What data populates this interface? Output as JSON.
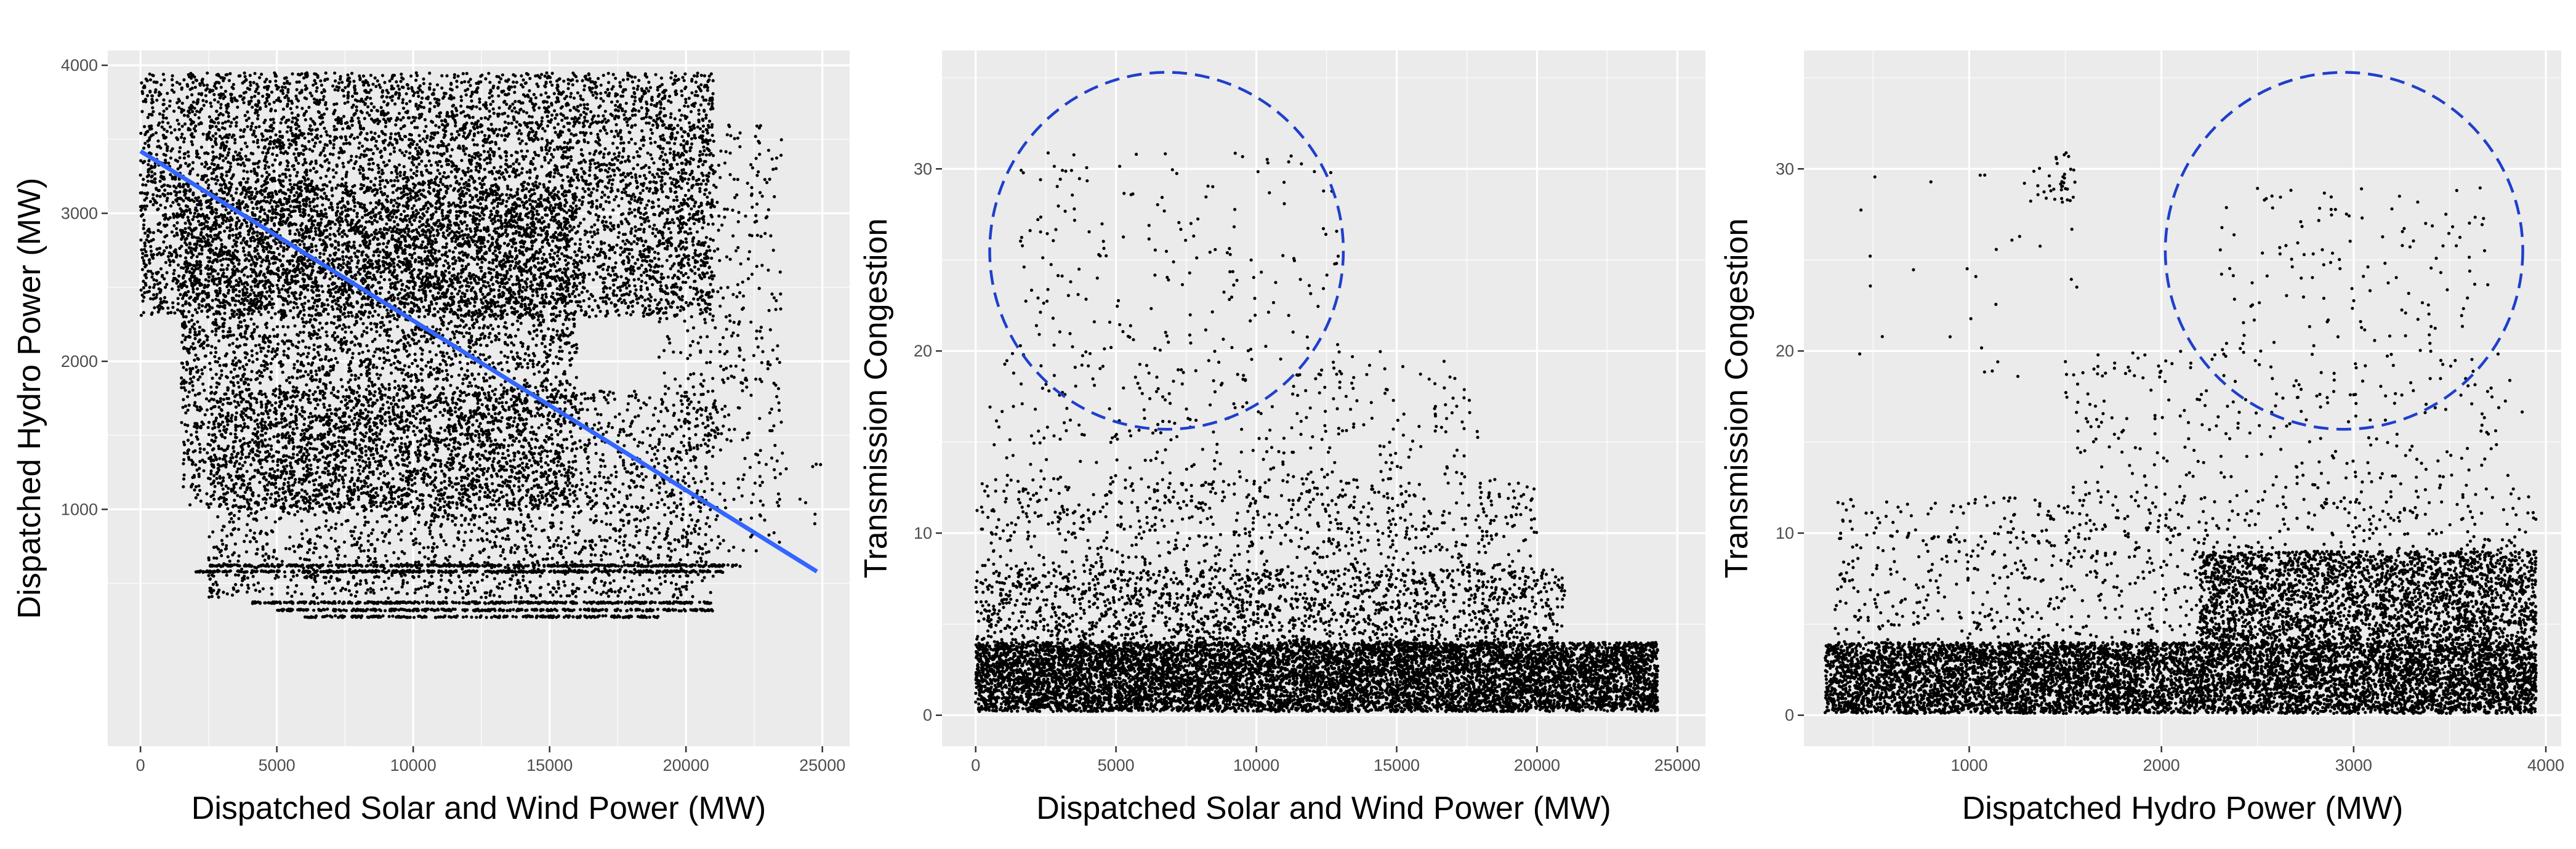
{
  "colors": {
    "panel_bg": "#EBEBEB",
    "grid_major": "#FFFFFF",
    "points": "#000000",
    "fit_line": "#3366FF",
    "circle": "#1F3FCC",
    "tick_text": "#4D4D4D"
  },
  "chart_data": [
    {
      "type": "scatter",
      "title": "",
      "xlabel": "Dispatched Solar and Wind Power (MW)",
      "ylabel": "Dispatched Hydro Power (MW)",
      "xlim": [
        -1200,
        26000
      ],
      "ylim": [
        -600,
        4100
      ],
      "xticks": [
        0,
        5000,
        10000,
        15000,
        20000,
        25000
      ],
      "xtick_labels": [
        "0",
        "5000",
        "10000",
        "15000",
        "20000",
        "25000"
      ],
      "yticks": [
        1000,
        2000,
        3000,
        4000
      ],
      "ytick_labels": [
        "1000",
        "2000",
        "3000",
        "4000"
      ],
      "grid": true,
      "fit_line": {
        "x": [
          0,
          24800
        ],
        "y": [
          3420,
          580
        ]
      },
      "scatter_regions": [
        {
          "x": [
            0,
            21000
          ],
          "y": [
            2300,
            3950
          ],
          "n": 6500
        },
        {
          "x": [
            1500,
            16000
          ],
          "y": [
            1000,
            3200
          ],
          "n": 5000
        },
        {
          "x": [
            2500,
            21000
          ],
          "y": [
            400,
            1800
          ],
          "n": 2500
        },
        {
          "x": [
            19000,
            23500
          ],
          "y": [
            700,
            3600
          ],
          "n": 500
        },
        {
          "x": [
            22500,
            25000
          ],
          "y": [
            900,
            1400
          ],
          "n": 12
        }
      ],
      "scatter_bands": [
        {
          "x": [
            2500,
            22000
          ],
          "y": 620,
          "n": 400
        },
        {
          "x": [
            2000,
            21500
          ],
          "y": 580,
          "n": 400
        },
        {
          "x": [
            4000,
            21000
          ],
          "y": 370,
          "n": 350
        },
        {
          "x": [
            5000,
            21000
          ],
          "y": 320,
          "n": 300
        },
        {
          "x": [
            6000,
            19000
          ],
          "y": 275,
          "n": 200
        }
      ]
    },
    {
      "type": "scatter",
      "title": "",
      "xlabel": "Dispatched Solar and Wind Power (MW)",
      "ylabel": "Transmission Congestion",
      "xlim": [
        -1200,
        26000
      ],
      "ylim": [
        -1.7,
        36.5
      ],
      "xticks": [
        0,
        5000,
        10000,
        15000,
        20000,
        25000
      ],
      "xtick_labels": [
        "0",
        "5000",
        "10000",
        "15000",
        "20000",
        "25000"
      ],
      "yticks": [
        0,
        10,
        20,
        30
      ],
      "ytick_labels": [
        "0",
        "10",
        "20",
        "30"
      ],
      "grid": true,
      "scatter_regions": [
        {
          "x": [
            0,
            24300
          ],
          "y": [
            0.2,
            4
          ],
          "n": 9000
        },
        {
          "x": [
            0,
            21000
          ],
          "y": [
            4,
            8
          ],
          "n": 1600
        },
        {
          "x": [
            0,
            20000
          ],
          "y": [
            8,
            13
          ],
          "n": 700
        },
        {
          "x": [
            500,
            18000
          ],
          "y": [
            13,
            20
          ],
          "n": 300
        },
        {
          "x": [
            1500,
            13000
          ],
          "y": [
            20,
            31
          ],
          "n": 180
        }
      ],
      "highlight_circle": {
        "cx": 6800,
        "cy": 25.5,
        "rx_data": 6300,
        "ry_data": 9.8
      }
    },
    {
      "type": "scatter",
      "title": "",
      "xlabel": "Dispatched Hydro Power (MW)",
      "ylabel": "Transmission Congestion",
      "xlim": [
        140,
        4080
      ],
      "ylim": [
        -1.7,
        36.5
      ],
      "xticks": [
        1000,
        2000,
        3000,
        4000
      ],
      "xtick_labels": [
        "1000",
        "2000",
        "3000",
        "4000"
      ],
      "yticks": [
        0,
        10,
        20,
        30
      ],
      "ytick_labels": [
        "0",
        "10",
        "20",
        "30"
      ],
      "grid": true,
      "scatter_regions": [
        {
          "x": [
            250,
            3950
          ],
          "y": [
            0.1,
            4
          ],
          "n": 8000
        },
        {
          "x": [
            2200,
            3950
          ],
          "y": [
            4,
            9
          ],
          "n": 2500
        },
        {
          "x": [
            300,
            3950
          ],
          "y": [
            4,
            12
          ],
          "n": 1000
        },
        {
          "x": [
            1500,
            3900
          ],
          "y": [
            12,
            20
          ],
          "n": 300
        },
        {
          "x": [
            2300,
            3700
          ],
          "y": [
            20,
            29
          ],
          "n": 130
        },
        {
          "x": [
            1350,
            1550
          ],
          "y": [
            28,
            31
          ],
          "n": 35
        },
        {
          "x": [
            400,
            1800
          ],
          "y": [
            18,
            31
          ],
          "n": 30
        }
      ],
      "highlight_circle": {
        "cx": 2950,
        "cy": 25.5,
        "rx_data": 930,
        "ry_data": 9.8
      }
    }
  ]
}
